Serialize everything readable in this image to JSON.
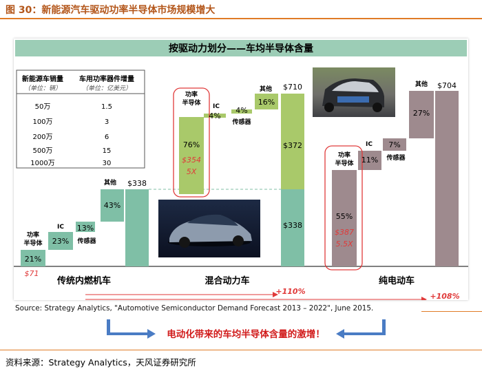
{
  "page": {
    "title": "图 30：新能源汽车驱动功率半导体市场规模增大",
    "footer": "资料来源：Strategy Analytics，天风证券研究所"
  },
  "banner": {
    "title": "按驱动力划分——车均半导体含量"
  },
  "table": {
    "headers": [
      {
        "main": "新能源车销量",
        "sub": "（单位：辆）"
      },
      {
        "main": "车用功率器件增量",
        "sub": "（单位：亿美元）"
      }
    ],
    "rows": [
      [
        "50万",
        "1.5"
      ],
      [
        "100万",
        "3"
      ],
      [
        "200万",
        "6"
      ],
      [
        "500万",
        "15"
      ],
      [
        "1000万",
        "30"
      ]
    ]
  },
  "chart_data": {
    "type": "bar",
    "subtype": "waterfall",
    "unit": "$",
    "groups": [
      {
        "name": "传统内燃机车",
        "segments": [
          {
            "label": "功率半导体",
            "share": "21%",
            "amount": "$71"
          },
          {
            "label": "IC",
            "share": "23%"
          },
          {
            "label": "传感器",
            "share": "13%"
          },
          {
            "label": "其他",
            "share": "43%"
          }
        ],
        "total": "$338"
      },
      {
        "name": "混合动力车",
        "segments": [
          {
            "label": "功率半导体",
            "share": "76%",
            "amount": "$354",
            "multiple": "5X"
          },
          {
            "label": "IC",
            "share": "4%"
          },
          {
            "label": "传感器",
            "share": "4%"
          },
          {
            "label": "其他",
            "share": "16%"
          }
        ],
        "total": "$710",
        "total_split": [
          "$372",
          "$338"
        ],
        "growth": "+110%"
      },
      {
        "name": "纯电动车",
        "segments": [
          {
            "label": "功率半导体",
            "share": "55%",
            "amount": "$387",
            "multiple": "5.5X"
          },
          {
            "label": "IC",
            "share": "11%"
          },
          {
            "label": "传感器",
            "share": "7%"
          },
          {
            "label": "其他",
            "share": "27%"
          }
        ],
        "total": "$704",
        "growth": "+108%"
      }
    ]
  },
  "source": "Source: Strategy Analytics, \"Automotive Semiconductor Demand Forecast 2013 – 2022\", June 2015.",
  "callout": "电动化带来的车均半导体含量的激增！",
  "colors": {
    "ice": "#7fbfa6",
    "hybrid": "#a9c96a",
    "ev": "#9e8a8e",
    "highlight": "#e03a3a",
    "banner": "#9ccdb6"
  }
}
